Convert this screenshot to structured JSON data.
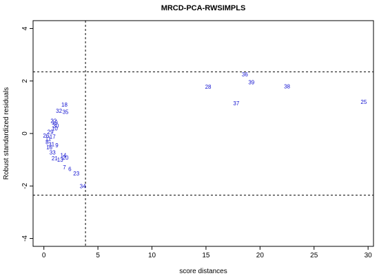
{
  "chart_data": {
    "type": "scatter",
    "title": "MRCD-PCA-RWSIMPLS",
    "xlabel": "score distances",
    "ylabel": "Robust standardized residuals",
    "xlim": [
      -1,
      30.5
    ],
    "ylim": [
      -4.3,
      4.3
    ],
    "xticks": [
      "0",
      "5",
      "10",
      "15",
      "20",
      "25",
      "30"
    ],
    "yticks": [
      "-4",
      "-2",
      "0",
      "2",
      "4"
    ],
    "cutoffs": {
      "x": 3.85,
      "y_upper": 2.35,
      "y_lower": -2.35
    },
    "point_color": "#1010d0",
    "points": [
      {
        "label": "36",
        "x": 18.6,
        "y": 2.25
      },
      {
        "label": "39",
        "x": 19.2,
        "y": 1.95
      },
      {
        "label": "28",
        "x": 15.2,
        "y": 1.78
      },
      {
        "label": "38",
        "x": 22.5,
        "y": 1.8
      },
      {
        "label": "37",
        "x": 17.8,
        "y": 1.15
      },
      {
        "label": "25",
        "x": 29.6,
        "y": 1.2
      },
      {
        "label": "18",
        "x": 1.9,
        "y": 1.1
      },
      {
        "label": "32",
        "x": 1.4,
        "y": 0.87
      },
      {
        "label": "35",
        "x": 2.0,
        "y": 0.82
      },
      {
        "label": "22",
        "x": 0.9,
        "y": 0.48
      },
      {
        "label": "19",
        "x": 1.0,
        "y": 0.42
      },
      {
        "label": "30",
        "x": 1.1,
        "y": 0.3
      },
      {
        "label": "10",
        "x": 1.0,
        "y": 0.2
      },
      {
        "label": "29",
        "x": 0.6,
        "y": 0.07
      },
      {
        "label": "26",
        "x": 0.2,
        "y": -0.08
      },
      {
        "label": "17",
        "x": 0.8,
        "y": -0.12
      },
      {
        "label": "11",
        "x": 0.4,
        "y": -0.2
      },
      {
        "label": "8",
        "x": 0.3,
        "y": -0.33
      },
      {
        "label": "31",
        "x": 0.7,
        "y": -0.4
      },
      {
        "label": "9",
        "x": 1.2,
        "y": -0.45
      },
      {
        "label": "16",
        "x": 0.5,
        "y": -0.52
      },
      {
        "label": "33",
        "x": 0.8,
        "y": -0.72
      },
      {
        "label": "14",
        "x": 1.8,
        "y": -0.82
      },
      {
        "label": "20",
        "x": 2.0,
        "y": -0.92
      },
      {
        "label": "21",
        "x": 1.0,
        "y": -0.95
      },
      {
        "label": "13",
        "x": 1.5,
        "y": -1.0
      },
      {
        "label": "7",
        "x": 1.9,
        "y": -1.28
      },
      {
        "label": "6",
        "x": 2.4,
        "y": -1.35
      },
      {
        "label": "23",
        "x": 3.0,
        "y": -1.52
      },
      {
        "label": "34",
        "x": 3.6,
        "y": -2.0
      }
    ]
  }
}
